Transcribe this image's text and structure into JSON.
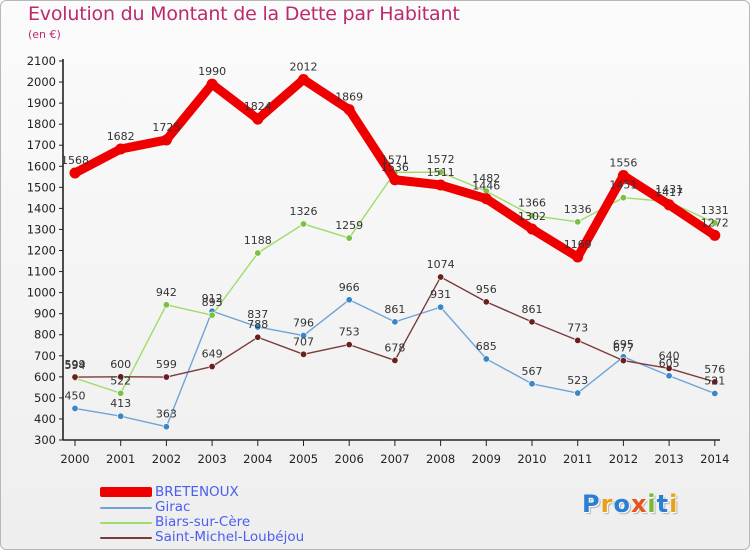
{
  "title": "Evolution du Montant de la Dette par Habitant",
  "unit_label": "(en €)",
  "logo": {
    "text": "Proxiti",
    "letters": [
      {
        "ch": "P",
        "color": "#2a7fd4"
      },
      {
        "ch": "r",
        "color": "#e8a21a"
      },
      {
        "ch": "o",
        "color": "#2a7fd4"
      },
      {
        "ch": "x",
        "color": "#e8551a"
      },
      {
        "ch": "i",
        "color": "#78b832"
      },
      {
        "ch": "t",
        "color": "#2a7fd4"
      },
      {
        "ch": "i",
        "color": "#e8a21a"
      }
    ]
  },
  "chart_data": {
    "type": "line",
    "x": [
      2000,
      2001,
      2002,
      2003,
      2004,
      2005,
      2006,
      2007,
      2008,
      2009,
      2010,
      2011,
      2012,
      2013,
      2014
    ],
    "ylim": [
      300,
      2100
    ],
    "yticks": [
      300,
      400,
      500,
      600,
      700,
      800,
      900,
      1000,
      1100,
      1200,
      1300,
      1400,
      1500,
      1600,
      1700,
      1800,
      1900,
      2000,
      2100
    ],
    "grid": false,
    "legend_position": "bottom-left",
    "series": [
      {
        "name": "BRETENOUX",
        "color": "#ee0000",
        "marker": "#ee0000",
        "values": [
          1568,
          1682,
          1725,
          1990,
          1824,
          2012,
          1869,
          1536,
          1511,
          1446,
          1302,
          1169,
          1556,
          1417,
          1272
        ]
      },
      {
        "name": "Girac",
        "color": "#6fa3d8",
        "marker": "#3a86c8",
        "values": [
          450,
          413,
          363,
          912,
          837,
          796,
          966,
          861,
          931,
          685,
          567,
          523,
          695,
          605,
          521
        ]
      },
      {
        "name": "Biars-sur-Cère",
        "color": "#9edc6a",
        "marker": "#7ac143",
        "values": [
          594,
          522,
          942,
          893,
          1188,
          1326,
          1259,
          1571,
          1572,
          1482,
          1366,
          1336,
          1451,
          1431,
          1331
        ]
      },
      {
        "name": "Saint-Michel-Loubéjou",
        "color": "#7a3b3b",
        "marker": "#6a1f1f",
        "values": [
          599,
          600,
          599,
          649,
          788,
          707,
          753,
          678,
          1074,
          956,
          861,
          773,
          677,
          640,
          576
        ]
      }
    ]
  }
}
